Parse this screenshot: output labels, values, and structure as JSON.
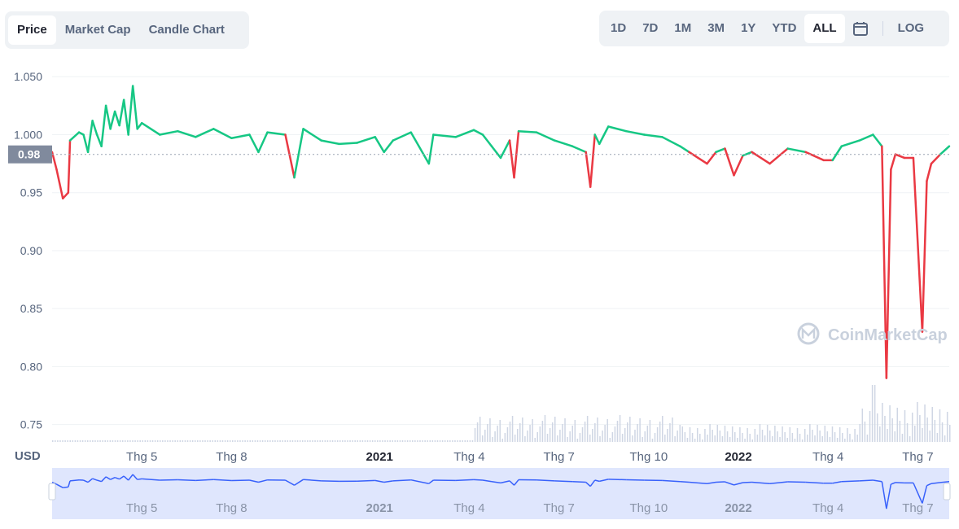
{
  "chart_tabs": [
    {
      "label": "Price",
      "active": true
    },
    {
      "label": "Market Cap",
      "active": false
    },
    {
      "label": "Candle Chart",
      "active": false
    }
  ],
  "time_ranges": [
    {
      "label": "1D",
      "active": false
    },
    {
      "label": "7D",
      "active": false
    },
    {
      "label": "1M",
      "active": false
    },
    {
      "label": "3M",
      "active": false
    },
    {
      "label": "1Y",
      "active": false
    },
    {
      "label": "YTD",
      "active": false
    },
    {
      "label": "ALL",
      "active": true
    }
  ],
  "calendar_icon": "calendar-icon",
  "log_label": "LOG",
  "watermark": "CoinMarketCap",
  "currency_label": "USD",
  "current_price_label": "0.98",
  "colors": {
    "up": "#16c784",
    "down": "#ea3943",
    "navigator_line": "#3861fb",
    "navigator_fill": "#dfe6fd"
  },
  "chart_data": {
    "type": "line",
    "y_ticks": [
      "1.050",
      "1.000",
      "0.95",
      "0.90",
      "0.85",
      "0.80",
      "0.75"
    ],
    "y_range": [
      0.735,
      1.06
    ],
    "x_ticks": [
      "Thg 5",
      "Thg 8",
      "2021",
      "Thg 4",
      "Thg 7",
      "Thg 10",
      "2022",
      "Thg 4",
      "Thg 7"
    ],
    "x_ticks_bold": [
      false,
      false,
      true,
      false,
      false,
      false,
      true,
      false,
      false
    ],
    "baseline": 0.983,
    "series": [
      {
        "points": [
          [
            0,
            0.985
          ],
          [
            0.005,
            0.97
          ],
          [
            0.012,
            0.945
          ],
          [
            0.018,
            0.95
          ],
          [
            0.02,
            0.995
          ],
          [
            0.03,
            1.002
          ],
          [
            0.035,
            1.0
          ],
          [
            0.04,
            0.985
          ],
          [
            0.045,
            1.012
          ],
          [
            0.05,
            1.0
          ],
          [
            0.055,
            0.99
          ],
          [
            0.06,
            1.025
          ],
          [
            0.065,
            1.005
          ],
          [
            0.07,
            1.02
          ],
          [
            0.075,
            1.008
          ],
          [
            0.08,
            1.03
          ],
          [
            0.085,
            1.0
          ],
          [
            0.09,
            1.042
          ],
          [
            0.095,
            1.005
          ],
          [
            0.1,
            1.01
          ],
          [
            0.12,
            1.0
          ],
          [
            0.14,
            1.003
          ],
          [
            0.16,
            0.998
          ],
          [
            0.18,
            1.005
          ],
          [
            0.2,
            0.997
          ],
          [
            0.22,
            1.0
          ],
          [
            0.23,
            0.985
          ],
          [
            0.24,
            1.002
          ],
          [
            0.26,
            1.0
          ],
          [
            0.27,
            0.963
          ],
          [
            0.28,
            1.005
          ],
          [
            0.3,
            0.995
          ],
          [
            0.32,
            0.992
          ],
          [
            0.34,
            0.993
          ],
          [
            0.36,
            0.998
          ],
          [
            0.37,
            0.985
          ],
          [
            0.38,
            0.995
          ],
          [
            0.4,
            1.002
          ],
          [
            0.42,
            0.975
          ],
          [
            0.425,
            1.0
          ],
          [
            0.45,
            0.998
          ],
          [
            0.47,
            1.004
          ],
          [
            0.48,
            1.0
          ],
          [
            0.49,
            0.99
          ],
          [
            0.5,
            0.98
          ],
          [
            0.51,
            0.995
          ],
          [
            0.515,
            0.963
          ],
          [
            0.52,
            1.003
          ],
          [
            0.54,
            1.002
          ],
          [
            0.56,
            0.995
          ],
          [
            0.58,
            0.99
          ],
          [
            0.595,
            0.985
          ],
          [
            0.6,
            0.955
          ],
          [
            0.605,
            1.0
          ],
          [
            0.61,
            0.992
          ],
          [
            0.62,
            1.007
          ],
          [
            0.64,
            1.003
          ],
          [
            0.66,
            1.0
          ],
          [
            0.68,
            0.998
          ],
          [
            0.7,
            0.99
          ],
          [
            0.71,
            0.985
          ],
          [
            0.72,
            0.98
          ],
          [
            0.73,
            0.975
          ],
          [
            0.74,
            0.985
          ],
          [
            0.75,
            0.988
          ],
          [
            0.76,
            0.965
          ],
          [
            0.77,
            0.982
          ],
          [
            0.78,
            0.985
          ],
          [
            0.8,
            0.975
          ],
          [
            0.82,
            0.988
          ],
          [
            0.84,
            0.985
          ],
          [
            0.86,
            0.978
          ],
          [
            0.87,
            0.978
          ],
          [
            0.88,
            0.99
          ],
          [
            0.9,
            0.995
          ],
          [
            0.915,
            1.0
          ],
          [
            0.925,
            0.99
          ],
          [
            0.93,
            0.79
          ],
          [
            0.935,
            0.97
          ],
          [
            0.94,
            0.983
          ],
          [
            0.95,
            0.98
          ],
          [
            0.96,
            0.98
          ],
          [
            0.97,
            0.83
          ],
          [
            0.975,
            0.96
          ],
          [
            0.98,
            0.975
          ],
          [
            0.99,
            0.983
          ],
          [
            1.0,
            0.99
          ]
        ]
      }
    ]
  }
}
